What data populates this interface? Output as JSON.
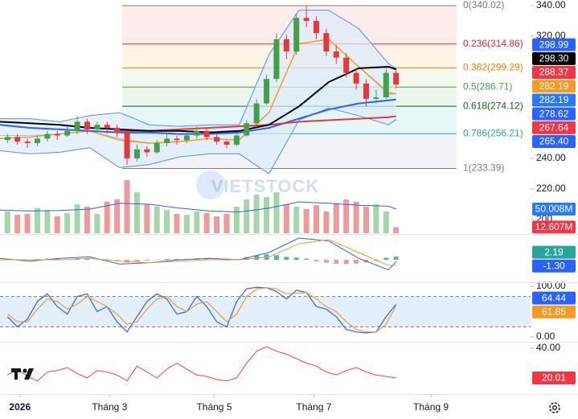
{
  "chart_data": [
    {
      "type": "candlestick",
      "watermark": "VIETSTOCK",
      "xlim": [
        0,
        213
      ],
      "xticks": [
        {
          "value": 8,
          "label": "2026"
        },
        {
          "value": 44,
          "label": "Tháng 3"
        },
        {
          "value": 86,
          "label": "Tháng 5"
        },
        {
          "value": 126,
          "label": "Tháng 7"
        },
        {
          "value": 173,
          "label": "Tháng 9"
        }
      ],
      "ylim": [
        190,
        342
      ],
      "yticks": [
        {
          "value": 200,
          "label": "200"
        },
        {
          "value": 220,
          "label": "220.00"
        },
        {
          "value": 240,
          "label": "240.00"
        },
        {
          "value": 320,
          "label": "320.00"
        },
        {
          "value": 340,
          "label": "340.00"
        }
      ],
      "colors": {
        "up": "#43a047",
        "down": "#e53935"
      },
      "x": [
        3,
        7,
        11,
        15,
        19,
        23,
        27,
        31,
        35,
        39,
        43,
        47,
        51,
        55,
        59,
        63,
        67,
        71,
        75,
        79,
        83,
        87,
        91,
        95,
        99,
        103,
        107,
        111,
        115,
        119,
        123,
        127,
        131,
        135,
        139,
        143,
        147,
        151,
        155,
        159
      ],
      "open": [
        252,
        254,
        251,
        250,
        253,
        256,
        255,
        258,
        264,
        259,
        262,
        260,
        257,
        240,
        246,
        244,
        250,
        253,
        252,
        255,
        258,
        254,
        251,
        249,
        255,
        263,
        276,
        292,
        318,
        310,
        332,
        330,
        322,
        310,
        306,
        296,
        289,
        279,
        280,
        296
      ],
      "high": [
        256,
        256,
        253,
        255,
        258,
        258,
        261,
        268,
        266,
        264,
        264,
        262,
        258,
        249,
        248,
        252,
        256,
        255,
        257,
        261,
        260,
        256,
        252,
        257,
        265,
        279,
        295,
        322,
        321,
        335,
        340.02,
        333,
        325,
        314,
        309,
        299,
        292,
        285,
        299,
        298
      ],
      "low": [
        250,
        249,
        247,
        248,
        251,
        252,
        254,
        256,
        256,
        257,
        256,
        254,
        236,
        238,
        241,
        243,
        248,
        249,
        250,
        253,
        252,
        249,
        247,
        248,
        254,
        262,
        275,
        290,
        305,
        308,
        326,
        318,
        307,
        302,
        293,
        285,
        274,
        276,
        279,
        286
      ],
      "close": [
        254,
        251,
        250,
        253,
        256,
        255,
        258,
        264,
        259,
        262,
        260,
        257,
        240,
        246,
        244,
        250,
        253,
        252,
        255,
        258,
        254,
        251,
        249,
        255,
        263,
        276,
        292,
        318,
        310,
        332,
        330,
        322,
        310,
        306,
        296,
        289,
        279,
        280,
        296,
        288.37
      ],
      "fib": [
        {
          "label": "0(340.02)",
          "value": 340.02,
          "color": "#787b86",
          "fill": "#fdecec"
        },
        {
          "label": "0.236(314.86)",
          "value": 314.86,
          "color": "#d32f2f",
          "fill": "#fff4e5"
        },
        {
          "label": "0.382(299.29)",
          "value": 299.29,
          "color": "#f57c00",
          "fill": "#f3f9ec"
        },
        {
          "label": "0.5(286.71)",
          "value": 286.71,
          "color": "#43a047",
          "fill": "#eaf6ec"
        },
        {
          "label": "0.618(274.12)",
          "value": 274.12,
          "color": "#1b5e20",
          "fill": "#e6f7f8"
        },
        {
          "label": "0.786(256.21)",
          "value": 256.21,
          "color": "#26a69a",
          "fill": "#f1f3f6"
        },
        {
          "label": "1(233.39)",
          "value": 233.39,
          "color": "#787b86"
        }
      ],
      "line_x": [
        0,
        12,
        24,
        36,
        48,
        60,
        72,
        84,
        96,
        108,
        120,
        132,
        144,
        156,
        159
      ],
      "band": {
        "color": "#5b8fd9",
        "fill": "#dcebfb",
        "upper": [
          266,
          266,
          264,
          268,
          270,
          262,
          261,
          262,
          262,
          308,
          337,
          337,
          325,
          302,
          298.99
        ],
        "lower": [
          245,
          243,
          244,
          247,
          234,
          236,
          241,
          243,
          243,
          230,
          265,
          273,
          268,
          262,
          265.4
        ]
      },
      "lines": [
        {
          "color": "#9ec5ef",
          "width": 1,
          "values": [
            255,
            255,
            256,
            258,
            253,
            250,
            251,
            253,
            252,
            270,
            315,
            318,
            300,
            282,
            282.19
          ]
        },
        {
          "color": "#f59a23",
          "width": 1.5,
          "values": [
            253,
            254,
            256,
            258,
            252,
            250,
            251,
            253,
            252,
            270,
            315,
            318,
            300,
            283,
            282.19
          ]
        },
        {
          "color": "#2962ff",
          "width": 2,
          "values": [
            262,
            260,
            259,
            258,
            257,
            257,
            256,
            256,
            257,
            260,
            266,
            272,
            276,
            278,
            278.62
          ]
        },
        {
          "color": "#e53935",
          "width": 2,
          "values": [
            null,
            null,
            null,
            null,
            258,
            258,
            259,
            260,
            261,
            262,
            264,
            265,
            266,
            267,
            267.64
          ]
        },
        {
          "color": "#000000",
          "width": 2,
          "values": [
            264,
            263,
            262,
            260,
            259,
            258,
            258,
            257,
            258,
            262,
            274,
            290,
            299,
            300,
            298.3
          ]
        }
      ],
      "last_values": [
        {
          "value": 298.99,
          "label": "298.99",
          "color": "#2962ff"
        },
        {
          "value": 298.3,
          "label": "298.30",
          "color": "#000000"
        },
        {
          "value": 288.37,
          "label": "288.37",
          "color": "#f23645"
        },
        {
          "value": 282.19,
          "label": "282.19",
          "color": "#f59a23"
        },
        {
          "value": 282.19,
          "label": "282.19",
          "color": "#2979ff"
        },
        {
          "value": 278.62,
          "label": "278.62",
          "color": "#2962ff"
        },
        {
          "value": 267.64,
          "label": "267.64",
          "color": "#f23645"
        },
        {
          "value": 265.4,
          "label": "265.40",
          "color": "#2962ff"
        }
      ]
    },
    {
      "type": "bar",
      "ylim": [
        0,
        150
      ],
      "colors": {
        "up": "#a5d6a7",
        "down": "#ef9a9a"
      },
      "values": [
        45,
        38,
        40,
        52,
        48,
        35,
        42,
        60,
        55,
        40,
        65,
        70,
        110,
        85,
        60,
        55,
        48,
        40,
        38,
        45,
        42,
        35,
        40,
        55,
        70,
        80,
        75,
        85,
        60,
        55,
        50,
        58,
        45,
        62,
        70,
        65,
        55,
        60,
        45,
        12.607
      ],
      "ma": {
        "color": "#2962ff",
        "values": [
          48,
          46,
          47,
          50,
          62,
          60,
          52,
          46,
          44,
          52,
          65,
          62,
          58,
          56,
          50.008
        ]
      },
      "last_values": [
        {
          "value": 50.008,
          "label": "50.008M",
          "color": "#2979ff"
        },
        {
          "value": 12.607,
          "label": "12.607M",
          "color": "#f23645"
        }
      ]
    },
    {
      "type": "macd",
      "ylim": [
        -15,
        15
      ],
      "colors": {
        "up": "#4db6ac",
        "down": "#ef9a9a"
      },
      "histogram": [
        0.5,
        -0.5,
        -0.3,
        0.4,
        0.8,
        0.6,
        0.2,
        1.0,
        0.8,
        -0.2,
        0.3,
        -0.5,
        -2.0,
        -1.2,
        -0.6,
        0.2,
        0.6,
        0.4,
        0.5,
        0.9,
        0.4,
        -0.3,
        -0.4,
        0.6,
        1.8,
        3.0,
        3.8,
        3.2,
        2.0,
        1.5,
        0.8,
        -1.0,
        -2.0,
        -2.8,
        -3.0,
        -2.6,
        -2.0,
        -0.8,
        1.4,
        2.19
      ],
      "lines": [
        {
          "color": "#2962ff",
          "width": 1,
          "values": [
            1,
            -1,
            1,
            2,
            -3,
            -2,
            0,
            1,
            0,
            5,
            15,
            13,
            1,
            -7,
            -1.3
          ]
        },
        {
          "color": "#f59a23",
          "width": 1,
          "values": [
            0,
            0,
            0,
            1,
            -1,
            -2,
            -1,
            0,
            0,
            2,
            11,
            14,
            5,
            -4,
            -3.49
          ]
        }
      ],
      "last_values": [
        {
          "value": 2.19,
          "label": "2.19",
          "color": "#26a69a"
        },
        {
          "value": -1.3,
          "label": "-1.30",
          "color": "#2962ff"
        }
      ]
    },
    {
      "type": "stochastic",
      "ylim": [
        0,
        100
      ],
      "yticks": [
        {
          "value": 0,
          "label": "0.00"
        },
        {
          "value": 100,
          "label": "100.00"
        }
      ],
      "levels": [
        20,
        80
      ],
      "band_fill": "#e3f0fc",
      "lines": [
        {
          "color": "#2962ff",
          "width": 1.2,
          "values": [
            40,
            20,
            35,
            70,
            85,
            60,
            45,
            80,
            85,
            50,
            60,
            30,
            10,
            40,
            70,
            85,
            75,
            45,
            50,
            80,
            60,
            30,
            20,
            70,
            95,
            98,
            97,
            90,
            75,
            92,
            88,
            60,
            55,
            40,
            15,
            10,
            8,
            10,
            40,
            64.44
          ]
        },
        {
          "color": "#f59a23",
          "width": 1.2,
          "values": [
            45,
            30,
            30,
            55,
            75,
            70,
            55,
            65,
            80,
            70,
            60,
            45,
            25,
            30,
            55,
            75,
            80,
            60,
            50,
            65,
            70,
            50,
            30,
            45,
            80,
            95,
            97,
            95,
            85,
            86,
            88,
            75,
            60,
            50,
            30,
            15,
            10,
            10,
            25,
            61.85
          ]
        }
      ],
      "last_values": [
        {
          "value": 64.44,
          "label": "64.44",
          "color": "#2962ff"
        },
        {
          "value": 61.85,
          "label": "61.85",
          "color": "#f59a23"
        }
      ]
    },
    {
      "type": "line",
      "ylim": [
        10,
        45
      ],
      "yticks": [
        {
          "value": 40,
          "label": "40.00"
        }
      ],
      "lines": [
        {
          "color": "#f44336",
          "width": 1,
          "values": [
            22,
            26,
            21,
            18,
            24,
            25,
            27,
            23,
            20,
            25,
            24,
            22,
            18,
            28,
            24,
            20,
            26,
            30,
            26,
            22,
            21,
            19,
            18,
            20,
            30,
            38,
            41,
            38,
            36,
            33,
            30,
            28,
            24,
            22,
            25,
            27,
            24,
            22,
            21,
            20.01
          ]
        }
      ],
      "last_values": [
        {
          "value": 20.01,
          "label": "20.01",
          "color": "#f23645"
        }
      ]
    }
  ]
}
